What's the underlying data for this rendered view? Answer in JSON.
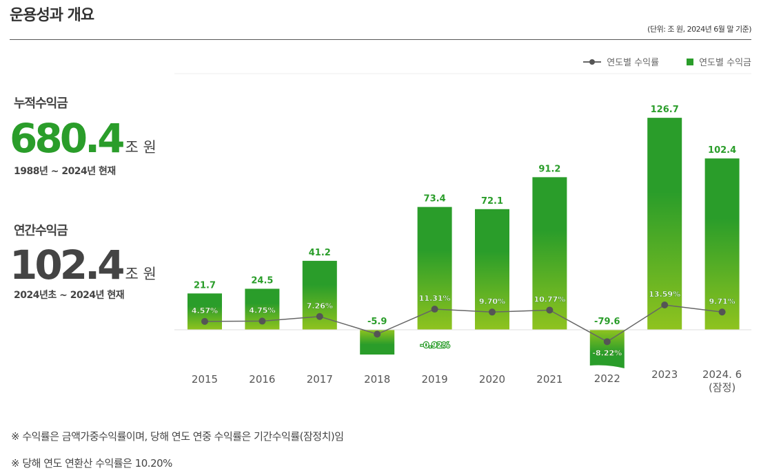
{
  "header": {
    "title": "운용성과 개요",
    "unit_note": "(단위: 조 원, 2024년 6월 말 기준)"
  },
  "summary": {
    "cumulative": {
      "label": "누적수익금",
      "value": "680.4",
      "unit": "조 원",
      "period": "1988년 ~ 2024년 현재",
      "color": "#2a9d2a"
    },
    "annual": {
      "label": "연간수익금",
      "value": "102.4",
      "unit": "조 원",
      "period": "2024년초 ~ 2024년 현재",
      "color": "#444444"
    }
  },
  "legend": {
    "line_label": "연도별 수익률",
    "bar_label": "연도별 수익금"
  },
  "chart_data": {
    "type": "bar+line",
    "categories": [
      "2015",
      "2016",
      "2017",
      "2018",
      "2019",
      "2020",
      "2021",
      "2022",
      "2023",
      "2024. 6\n(잠정)"
    ],
    "series": [
      {
        "name": "연도별 수익금",
        "type": "bar",
        "values": [
          21.7,
          24.5,
          41.2,
          -5.9,
          73.4,
          72.1,
          91.2,
          -79.6,
          126.7,
          102.4
        ],
        "labels": [
          "21.7",
          "24.5",
          "41.2",
          "-5.9",
          "73.4",
          "72.1",
          "91.2",
          "-79.6",
          "126.7",
          "102.4"
        ],
        "color_top": "#2a9d2a",
        "color_bottom": "#8fc31f"
      },
      {
        "name": "연도별 수익률",
        "type": "line",
        "values": [
          4.57,
          4.75,
          7.26,
          -0.92,
          11.31,
          9.7,
          10.77,
          -8.22,
          13.59,
          9.71
        ],
        "labels": [
          "4.57%",
          "4.75%",
          "7.26%",
          "-0.92%",
          "11.31%",
          "9.70%",
          "10.77%",
          "-8.22%",
          "13.59%",
          "9.71%"
        ],
        "color": "#666666"
      }
    ],
    "legend_placement": "top-right",
    "grid": false
  },
  "notes": [
    "※ 수익률은 금액가중수익률이며, 당해 연도 연중 수익률은 기간수익률(잠정치)임",
    "※ 당해 연도 연환산 수익률은 10.20%"
  ]
}
